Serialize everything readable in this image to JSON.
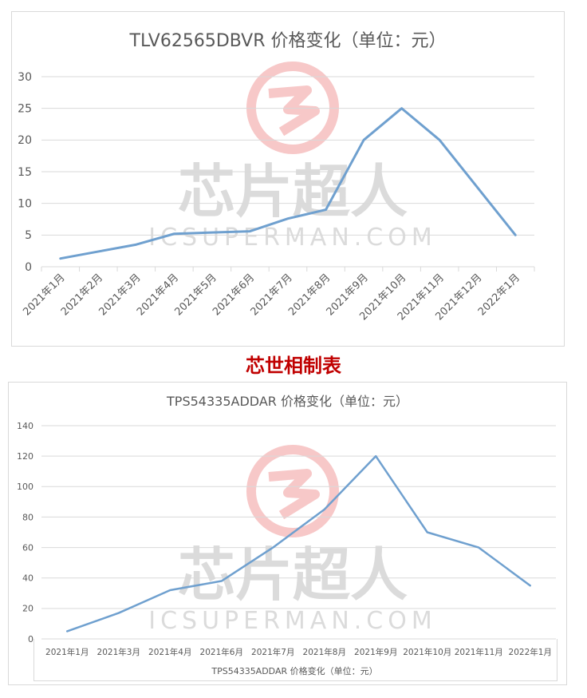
{
  "watermark": {
    "text": "芯片超人",
    "subtext": "ICSUPERMAN.COM",
    "color": "#f4b6b6"
  },
  "caption": "芯世相制表",
  "chart_data": [
    {
      "type": "line",
      "title": "TLV62565DBVR 价格变化（单位：元）",
      "categories": [
        "2021年1月",
        "2021年2月",
        "2021年3月",
        "2021年4月",
        "2021年5月",
        "2021年6月",
        "2021年7月",
        "2021年8月",
        "2021年9月",
        "2021年10月",
        "2021年11月",
        "2021年12月",
        "2022年1月"
      ],
      "values": [
        1.3,
        2.4,
        3.5,
        5.2,
        5.4,
        5.6,
        7.6,
        9,
        20,
        25,
        20,
        12.5,
        5
      ],
      "ylim": [
        0,
        30
      ],
      "yticks": [
        0,
        5,
        10,
        15,
        20,
        25,
        30
      ],
      "grid": true,
      "line_color": "#6fa0cf"
    },
    {
      "type": "line",
      "title": "TPS54335ADDAR 价格变化（单位：元）",
      "xlabel": "TPS54335ADDAR 价格变化（单位：元）",
      "categories": [
        "2021年1月",
        "2021年3月",
        "2021年4月",
        "2021年6月",
        "2021年7月",
        "2021年8月",
        "2021年9月",
        "2021年10月",
        "2021年11月",
        "2022年1月"
      ],
      "values": [
        5,
        17,
        32,
        38,
        60,
        85,
        120,
        70,
        60,
        35
      ],
      "ylim": [
        0,
        140
      ],
      "yticks": [
        0,
        20,
        40,
        60,
        80,
        100,
        120,
        140
      ],
      "grid": true,
      "line_color": "#6fa0cf"
    }
  ]
}
